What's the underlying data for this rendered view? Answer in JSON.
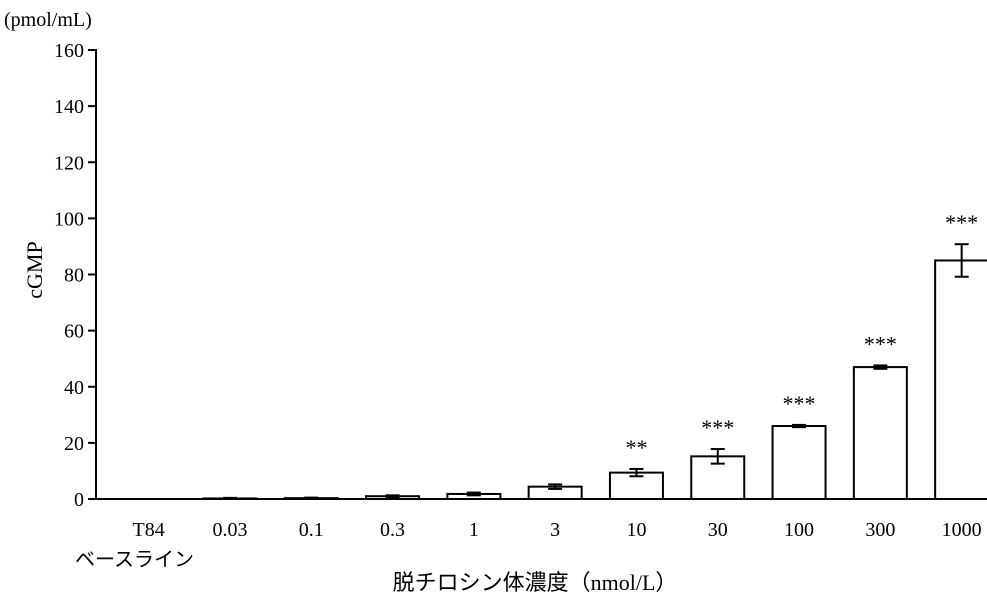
{
  "chart_data": {
    "type": "bar",
    "unit_label": "(pmol/mL)",
    "ylabel": "cGMP",
    "xlabel": "脱チロシン体濃度（nmol/L）",
    "baseline_label": "ベースライン",
    "ylim": [
      0,
      160
    ],
    "yticks": [
      0,
      20,
      40,
      60,
      80,
      100,
      120,
      140,
      160
    ],
    "categories": [
      "T84",
      "0.03",
      "0.1",
      "0.3",
      "1",
      "3",
      "10",
      "30",
      "100",
      "300",
      "1000"
    ],
    "values": [
      0,
      0.2,
      0.3,
      1.0,
      1.8,
      4.4,
      9.4,
      15.2,
      26.0,
      47.0,
      85.0
    ],
    "errors": [
      0,
      0.2,
      0.2,
      0.3,
      0.5,
      0.8,
      1.3,
      2.6,
      0.4,
      0.6,
      5.8
    ],
    "significance": [
      "",
      "",
      "",
      "",
      "",
      "",
      "**",
      "***",
      "***",
      "***",
      "***"
    ],
    "grid": false,
    "bar_color": "#ffffff",
    "edge_color": "#000000"
  }
}
